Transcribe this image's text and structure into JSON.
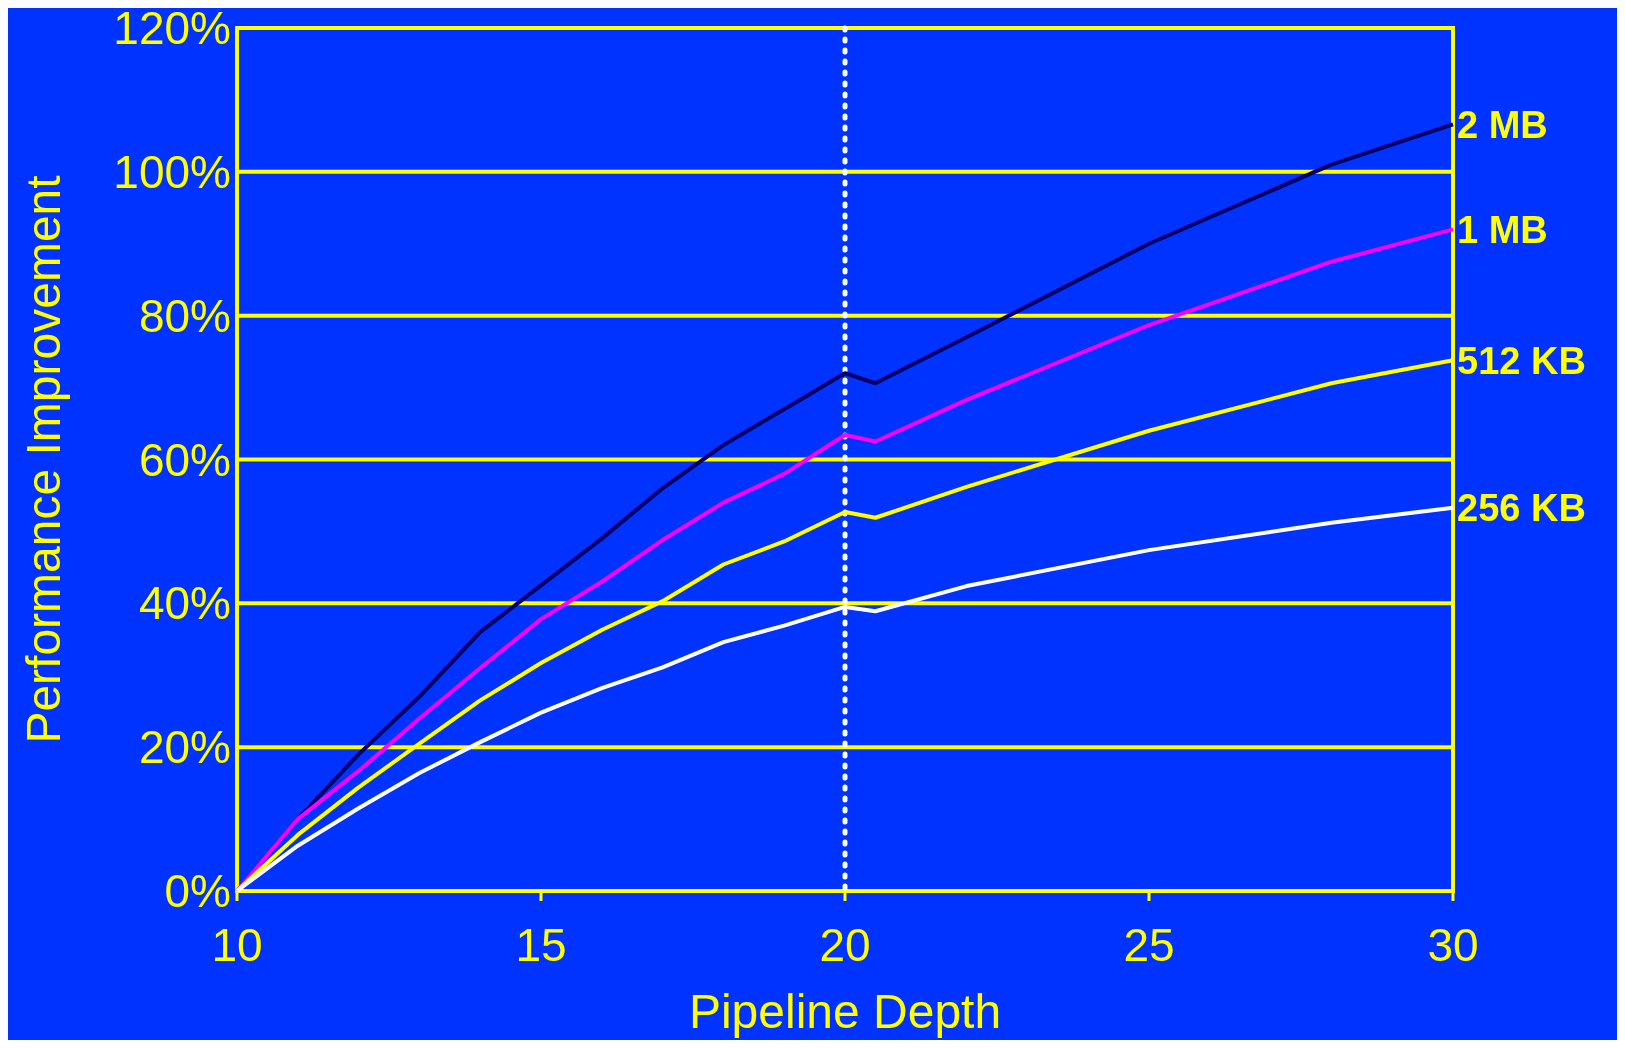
{
  "chart_data": {
    "type": "line",
    "xlabel": "Pipeline Depth",
    "ylabel": "Performance Improvement",
    "xlim": [
      10,
      30
    ],
    "xticks": [
      10,
      15,
      20,
      25,
      30
    ],
    "ylim": [
      0,
      120
    ],
    "yticks": [
      {
        "value": 0,
        "label": "0%"
      },
      {
        "value": 20,
        "label": "20%"
      },
      {
        "value": 40,
        "label": "40%"
      },
      {
        "value": 60,
        "label": "60%"
      },
      {
        "value": 80,
        "label": "80%"
      },
      {
        "value": 100,
        "label": "100%"
      },
      {
        "value": 120,
        "label": "120%"
      }
    ],
    "grid": "y",
    "legend": false,
    "marker": "none",
    "line_style": "solid",
    "x": [
      10,
      11,
      12,
      13,
      14,
      15,
      16,
      17,
      18,
      19,
      20,
      20.5,
      22,
      25,
      28,
      30
    ],
    "series": [
      {
        "name": "2 MB",
        "color": "#000066",
        "values": [
          0,
          10,
          19,
          27,
          36,
          42.5,
          49,
          56,
          62,
          67,
          72,
          70.6,
          77,
          90,
          101,
          106.6
        ]
      },
      {
        "name": "1 MB",
        "color": "#ff00ff",
        "values": [
          0,
          10,
          16.7,
          24,
          31,
          37.8,
          43,
          48.8,
          54,
          58,
          63.4,
          62.5,
          68.3,
          78.7,
          87.5,
          92
        ]
      },
      {
        "name": "512 KB",
        "color": "#ffff00",
        "values": [
          0,
          7.8,
          14.4,
          20.5,
          26.5,
          31.7,
          36.3,
          40.3,
          45.4,
          48.6,
          52.7,
          51.9,
          56.2,
          64,
          70.6,
          73.8
        ]
      },
      {
        "name": "256 KB",
        "color": "#ffffff",
        "values": [
          0,
          6.3,
          11.5,
          16.4,
          20.7,
          24.8,
          28.2,
          31.1,
          34.6,
          36.9,
          39.5,
          38.9,
          42.4,
          47.4,
          51.2,
          53.3
        ]
      }
    ],
    "ref_lines": [
      {
        "axis": "x",
        "value": 20,
        "color": "#ffffff",
        "line_style": "dotted"
      }
    ]
  }
}
